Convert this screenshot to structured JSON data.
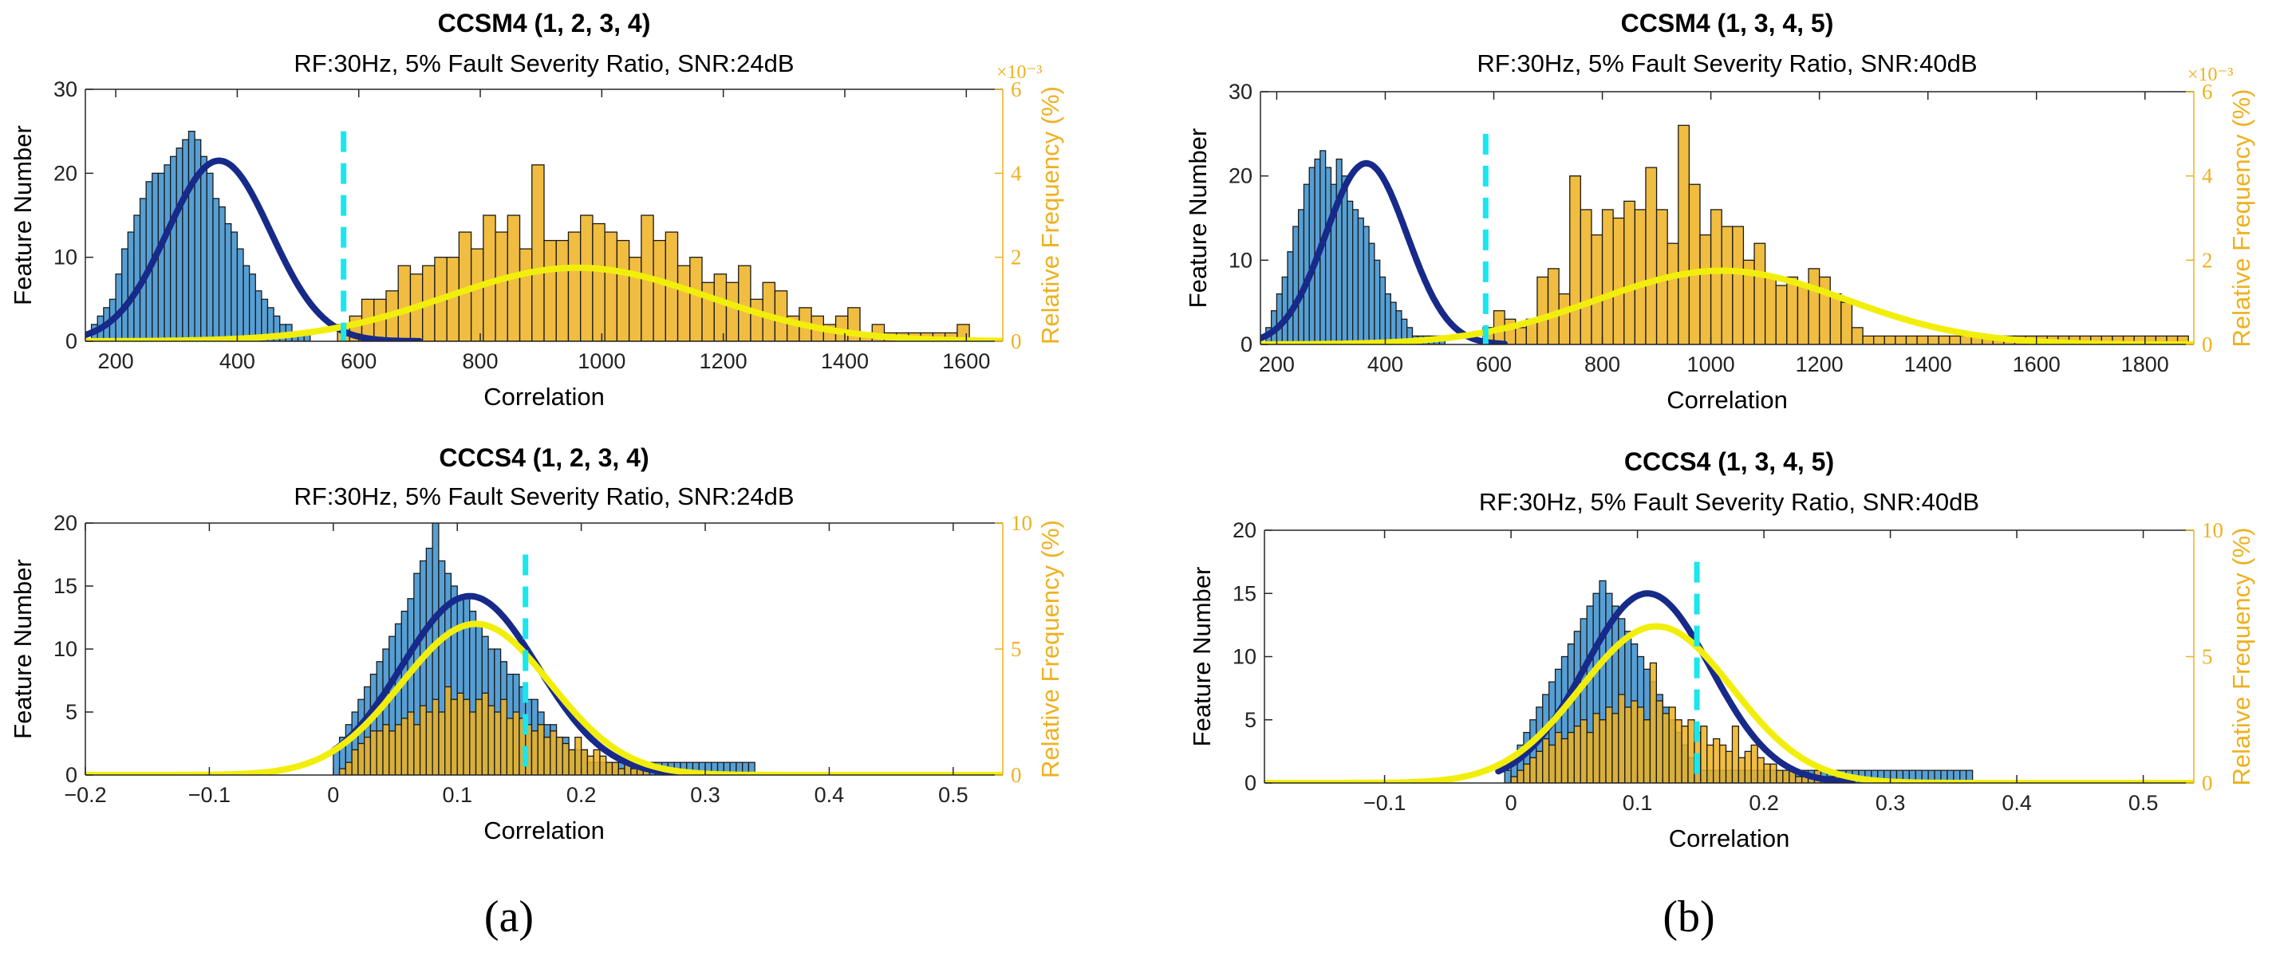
{
  "panel_labels": [
    "(a)",
    "(b)"
  ],
  "chart_data": [
    {
      "id": "a-top",
      "type": "bar",
      "title": "CCSM4 (1, 2, 3, 4)",
      "subtitle": "RF:30Hz, 5% Fault Severity Ratio, SNR:24dB",
      "xlabel": "Correlation",
      "ylabel": "Feature Number",
      "y2label": "Relative Frequency (%)",
      "y2_exponent": "×10⁻³",
      "xlim": [
        150,
        1660
      ],
      "ylim": [
        0,
        30
      ],
      "y2lim": [
        0,
        6
      ],
      "xticks": [
        200,
        400,
        600,
        800,
        1000,
        1200,
        1400,
        1600
      ],
      "yticks": [
        0,
        10,
        20,
        30
      ],
      "y2ticks": [
        0,
        2,
        4,
        6
      ],
      "threshold": {
        "x": 575,
        "y_top": 25
      },
      "series": [
        {
          "name": "",
          "color": "#4D9AD2",
          "bin_start": 160,
          "bin_width": 10,
          "values": [
            2,
            3,
            4,
            5,
            8,
            11,
            13,
            15,
            17,
            19,
            20,
            20,
            21,
            22,
            23,
            24,
            25,
            24,
            22,
            20,
            17,
            16,
            14,
            13,
            11,
            9,
            8,
            6,
            5,
            4,
            3,
            2,
            2,
            1,
            1,
            1
          ]
        },
        {
          "name": "",
          "color": "#EDB120",
          "bin_start": 565,
          "bin_width": 20,
          "values": [
            2,
            3,
            5,
            5,
            6,
            9,
            8,
            9,
            10,
            10,
            13,
            11,
            15,
            13,
            15,
            11,
            21,
            12,
            12,
            13,
            15,
            14,
            13,
            12,
            10,
            15,
            12,
            13,
            9,
            10,
            7,
            8,
            7,
            9,
            5,
            7,
            6,
            3,
            4,
            3,
            2,
            3,
            4,
            1,
            2,
            1,
            1,
            1,
            1,
            1,
            1,
            2
          ]
        }
      ],
      "fits": [
        {
          "name": "",
          "color": "#172A8A",
          "axis": "left",
          "mu": 370,
          "sigma": 85,
          "peak": 21.5,
          "range": [
            150,
            700
          ]
        },
        {
          "name": "",
          "color": "#F2EE0C",
          "axis": "right",
          "mu": 960,
          "sigma": 215,
          "peak": 1.75,
          "range": [
            150,
            1660
          ]
        }
      ]
    },
    {
      "id": "a-bottom",
      "type": "bar",
      "title": "CCCS4 (1, 2, 3, 4)",
      "subtitle": "RF:30Hz, 5% Fault Severity Ratio, SNR:24dB",
      "xlabel": "Correlation",
      "ylabel": "Feature Number",
      "y2label": "Relative Frequency (%)",
      "xlim": [
        -0.2,
        0.54
      ],
      "ylim": [
        0,
        20
      ],
      "y2lim": [
        0,
        10
      ],
      "xticks": [
        -0.2,
        -0.1,
        0,
        0.1,
        0.2,
        0.3,
        0.4,
        0.5
      ],
      "xticklabels": [
        "−0.2",
        "−0.1",
        "0",
        "0.1",
        "0.2",
        "0.3",
        "0.4",
        "0.5"
      ],
      "yticks": [
        0,
        5,
        10,
        15,
        20
      ],
      "y2ticks": [
        0,
        5,
        10
      ],
      "threshold": {
        "x": 0.155,
        "y_top": 17.5
      },
      "series": [
        {
          "name": "",
          "color": "#4D9AD2",
          "bin_start": 0,
          "bin_width": 0.005,
          "values": [
            2,
            3,
            4,
            5,
            6,
            7,
            8,
            9,
            10,
            11,
            12,
            13,
            14,
            16,
            17,
            18,
            20,
            17,
            16,
            15,
            14,
            14,
            13,
            12,
            11,
            10,
            10,
            9,
            8,
            8,
            7,
            6,
            6,
            5,
            4,
            4,
            3,
            3,
            2,
            2,
            2,
            1,
            1,
            1,
            1,
            1,
            1,
            1,
            1,
            1,
            1,
            1,
            1,
            1,
            1,
            1,
            1,
            1,
            1,
            1,
            1,
            1,
            1,
            1,
            1,
            1,
            1,
            1
          ]
        },
        {
          "name": "",
          "color": "#EDB120",
          "bin_start": 0.005,
          "bin_width": 0.005,
          "values": [
            0.5,
            1,
            2,
            2.5,
            3,
            3.5,
            3.5,
            4,
            3.5,
            4,
            4.5,
            5,
            4,
            5.5,
            5,
            6,
            5,
            7,
            6,
            6.5,
            6,
            5,
            6,
            6.5,
            5.5,
            5,
            6,
            4.5,
            5,
            4.5,
            4,
            3.5,
            4,
            3,
            3.5,
            3,
            2.5,
            2,
            3,
            2,
            1.5,
            2,
            1.5,
            1,
            1,
            0.5,
            1,
            0.5,
            0.5,
            0.5
          ]
        }
      ],
      "fits": [
        {
          "name": "",
          "color": "#172A8A",
          "axis": "left",
          "mu": 0.11,
          "sigma": 0.055,
          "peak": 14.2,
          "range": [
            0,
            0.28
          ]
        },
        {
          "name": "",
          "color": "#F2EE0C",
          "axis": "right",
          "mu": 0.115,
          "sigma": 0.06,
          "peak": 6,
          "range": [
            -0.2,
            0.54
          ]
        }
      ]
    },
    {
      "id": "b-top",
      "type": "bar",
      "title": "CCSM4 (1, 3, 4, 5)",
      "subtitle": "RF:30Hz, 5% Fault Severity Ratio, SNR:40dB",
      "xlabel": "Correlation",
      "ylabel": "Feature Number",
      "y2label": "Relative Frequency (%)",
      "y2_exponent": "×10⁻³",
      "xlim": [
        170,
        1890
      ],
      "ylim": [
        0,
        30
      ],
      "y2lim": [
        0,
        6
      ],
      "xticks": [
        200,
        400,
        600,
        800,
        1000,
        1200,
        1400,
        1600,
        1800
      ],
      "yticks": [
        0,
        10,
        20,
        30
      ],
      "y2ticks": [
        0,
        2,
        4,
        6
      ],
      "threshold": {
        "x": 585,
        "y_top": 25
      },
      "series": [
        {
          "name": "",
          "color": "#4D9AD2",
          "bin_start": 180,
          "bin_width": 10,
          "values": [
            2,
            4,
            6,
            8,
            11,
            14,
            16,
            19,
            21,
            22,
            23,
            21,
            19,
            22,
            20,
            17,
            16,
            15,
            14,
            12,
            10,
            8,
            6,
            5,
            4,
            3,
            2,
            1,
            1,
            1,
            1,
            1,
            1
          ]
        },
        {
          "name": "",
          "color": "#EDB120",
          "bin_start": 580,
          "bin_width": 20,
          "values": [
            2,
            4,
            3,
            2,
            3,
            8,
            9,
            6,
            20,
            16,
            13,
            16,
            15,
            17,
            16,
            21,
            16,
            12,
            26,
            19,
            13,
            16,
            14,
            14,
            10,
            12,
            8,
            7,
            8,
            7,
            9,
            8,
            6,
            5,
            2,
            1,
            1,
            1,
            1,
            1,
            1,
            1,
            1,
            1,
            1,
            1,
            1,
            1,
            1,
            1,
            1,
            1,
            1,
            1,
            1,
            1,
            1,
            1,
            1,
            1,
            1,
            1,
            1,
            1,
            1
          ]
        }
      ],
      "fits": [
        {
          "name": "",
          "color": "#172A8A",
          "axis": "left",
          "mu": 365,
          "sigma": 75,
          "peak": 21.5,
          "range": [
            170,
            620
          ]
        },
        {
          "name": "",
          "color": "#F2EE0C",
          "axis": "right",
          "mu": 1020,
          "sigma": 230,
          "peak": 1.75,
          "range": [
            170,
            1890
          ]
        }
      ]
    },
    {
      "id": "b-bottom",
      "type": "bar",
      "title": "CCCS4 (1, 3, 4, 5)",
      "subtitle": "RF:30Hz, 5% Fault Severity Ratio, SNR:40dB",
      "xlabel": "Correlation",
      "ylabel": "Feature Number",
      "y2label": "Relative Frequency (%)",
      "xlim": [
        -0.195,
        0.54
      ],
      "ylim": [
        0,
        20
      ],
      "y2lim": [
        0,
        10
      ],
      "xticks": [
        -0.1,
        0,
        0.1,
        0.2,
        0.3,
        0.4,
        0.5
      ],
      "xticklabels": [
        "−0.1",
        "0",
        "0.1",
        "0.2",
        "0.3",
        "0.4",
        "0.5"
      ],
      "yticks": [
        0,
        5,
        10,
        15,
        20
      ],
      "y2ticks": [
        0,
        5,
        10
      ],
      "threshold": {
        "x": 0.147,
        "y_top": 17.5
      },
      "series": [
        {
          "name": "",
          "color": "#4D9AD2",
          "bin_start": -0.005,
          "bin_width": 0.005,
          "values": [
            1,
            2,
            3,
            4,
            5,
            6,
            7,
            8,
            9,
            10,
            11,
            12,
            13,
            14,
            15,
            16,
            15,
            14,
            13,
            12,
            11,
            10,
            9,
            8,
            7,
            6,
            5,
            4,
            3,
            2,
            2,
            1,
            1,
            1,
            1,
            1,
            1,
            1,
            1,
            1,
            1,
            1,
            1,
            1,
            1,
            1,
            1,
            1,
            1,
            1,
            1,
            1,
            1,
            1,
            1,
            1,
            1,
            1,
            1,
            1,
            1,
            1,
            1,
            1,
            1,
            1,
            1,
            1,
            1,
            1,
            1,
            1,
            1,
            1
          ]
        },
        {
          "name": "",
          "color": "#EDB120",
          "bin_start": 0,
          "bin_width": 0.005,
          "values": [
            0.5,
            1,
            1.5,
            2,
            2.5,
            3.5,
            3,
            4,
            3.5,
            4,
            4.5,
            5,
            4,
            5.5,
            5,
            6,
            5.5,
            7,
            6,
            6.5,
            6,
            5,
            9.5,
            6.5,
            5.5,
            6,
            5,
            4.5,
            5,
            4,
            4.5,
            3,
            3.5,
            3,
            2.5,
            4.5,
            2,
            2.5,
            3,
            2,
            1.5,
            1.5,
            1,
            1,
            1,
            0.5,
            0.5,
            0.5,
            1,
            0.5,
            0.5,
            0.5
          ]
        }
      ],
      "fits": [
        {
          "name": "",
          "color": "#172A8A",
          "axis": "left",
          "mu": 0.108,
          "sigma": 0.05,
          "peak": 15,
          "range": [
            -0.01,
            0.27
          ]
        },
        {
          "name": "",
          "color": "#F2EE0C",
          "axis": "right",
          "mu": 0.115,
          "sigma": 0.06,
          "peak": 6.2,
          "range": [
            -0.195,
            0.54
          ]
        }
      ]
    }
  ]
}
